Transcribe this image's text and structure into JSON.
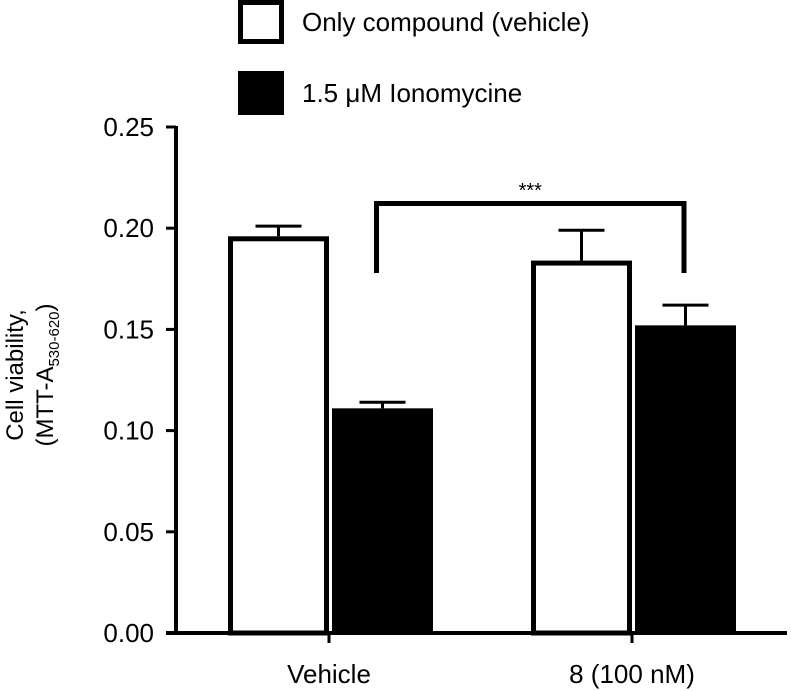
{
  "chart_data": {
    "type": "bar",
    "title": "",
    "xlabel": "",
    "ylabel": "Cell viability, (MTT-A530-620)",
    "ylabel_lines": [
      "Cell viability,",
      "(MTT-A",
      "530-620",
      ")"
    ],
    "ylim": [
      0,
      0.25
    ],
    "yticks": [
      "0.00",
      "0.05",
      "0.10",
      "0.15",
      "0.20",
      "0.25"
    ],
    "categories": [
      "Vehicle",
      "8 (100 nM)"
    ],
    "series": [
      {
        "name": "Only compound (vehicle)",
        "fill": "#ffffff",
        "stroke": "#000000",
        "values": [
          0.196,
          0.184
        ],
        "errors": [
          0.005,
          0.015
        ]
      },
      {
        "name": "1.5 μM Ionomycine",
        "fill": "#000000",
        "stroke": "#000000",
        "values": [
          0.111,
          0.152
        ],
        "errors": [
          0.003,
          0.01
        ]
      }
    ],
    "annotations": [
      {
        "type": "significance-bracket",
        "text": "***",
        "from": "Vehicle / 1.5 μM Ionomycine",
        "to": "8 (100 nM) / 1.5 μM Ionomycine"
      }
    ],
    "legend_position": "top",
    "grid": false
  },
  "legend": {
    "items": [
      {
        "label": "Only compound (vehicle)"
      },
      {
        "label": "1.5 μM Ionomycine"
      }
    ]
  }
}
